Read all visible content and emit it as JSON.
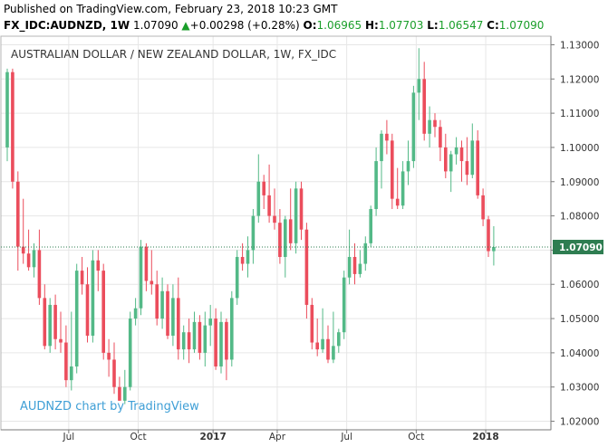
{
  "header": {
    "published": "Published on TradingView.com, February 23, 2018 10:23 GMT",
    "symbol": "FX_IDC:AUDNZD, 1W",
    "price": "1.07090",
    "change_arrow": "▲",
    "change": "+0.00298 (+0.28%)",
    "o_label": "O:",
    "o_value": "1.06965",
    "h_label": "H:",
    "h_value": "1.07703",
    "l_label": "L:",
    "l_value": "1.06547",
    "c_label": "C:",
    "c_value": "1.07090"
  },
  "chart_data": {
    "type": "candlestick",
    "title": "AUSTRALIAN DOLLAR / NEW ZEALAND DOLLAR, 1W, FX_IDC",
    "watermark": "AUDNZD chart by TradingView",
    "ylim": [
      1.0175,
      1.1325
    ],
    "yticks": [
      "1.13000",
      "1.12000",
      "1.11000",
      "1.10000",
      "1.09000",
      "1.08000",
      "1.07000",
      "1.06000",
      "1.05000",
      "1.04000",
      "1.03000",
      "1.02000"
    ],
    "xticks": [
      {
        "label": "Jul",
        "bold": false,
        "index": 11.5
      },
      {
        "label": "Oct",
        "bold": false,
        "index": 24.5
      },
      {
        "label": "2017",
        "bold": true,
        "index": 38.5
      },
      {
        "label": "Apr",
        "bold": false,
        "index": 50.5
      },
      {
        "label": "Jul",
        "bold": false,
        "index": 63.5
      },
      {
        "label": "Oct",
        "bold": false,
        "index": 76.5
      },
      {
        "label": "2018",
        "bold": true,
        "index": 89.5
      }
    ],
    "last_price": "1.07090",
    "last_value": 1.0709,
    "colors": {
      "up": "#53b987",
      "down": "#eb4d5c",
      "grid": "#e6e6e6",
      "last": "#2e7d51"
    },
    "candles": [
      {
        "o": 1.1,
        "h": 1.123,
        "l": 1.096,
        "c": 1.122
      },
      {
        "o": 1.122,
        "h": 1.123,
        "l": 1.088,
        "c": 1.09
      },
      {
        "o": 1.09,
        "h": 1.093,
        "l": 1.064,
        "c": 1.071
      },
      {
        "o": 1.071,
        "h": 1.085,
        "l": 1.066,
        "c": 1.069
      },
      {
        "o": 1.069,
        "h": 1.076,
        "l": 1.064,
        "c": 1.065
      },
      {
        "o": 1.065,
        "h": 1.072,
        "l": 1.062,
        "c": 1.07
      },
      {
        "o": 1.07,
        "h": 1.076,
        "l": 1.054,
        "c": 1.056
      },
      {
        "o": 1.056,
        "h": 1.06,
        "l": 1.041,
        "c": 1.042
      },
      {
        "o": 1.042,
        "h": 1.056,
        "l": 1.04,
        "c": 1.054
      },
      {
        "o": 1.054,
        "h": 1.057,
        "l": 1.041,
        "c": 1.044
      },
      {
        "o": 1.044,
        "h": 1.052,
        "l": 1.04,
        "c": 1.043
      },
      {
        "o": 1.043,
        "h": 1.048,
        "l": 1.03,
        "c": 1.032
      },
      {
        "o": 1.032,
        "h": 1.052,
        "l": 1.029,
        "c": 1.036
      },
      {
        "o": 1.036,
        "h": 1.066,
        "l": 1.034,
        "c": 1.064
      },
      {
        "o": 1.064,
        "h": 1.068,
        "l": 1.057,
        "c": 1.06
      },
      {
        "o": 1.06,
        "h": 1.065,
        "l": 1.043,
        "c": 1.045
      },
      {
        "o": 1.045,
        "h": 1.07,
        "l": 1.043,
        "c": 1.067
      },
      {
        "o": 1.067,
        "h": 1.07,
        "l": 1.058,
        "c": 1.064
      },
      {
        "o": 1.064,
        "h": 1.066,
        "l": 1.038,
        "c": 1.04
      },
      {
        "o": 1.04,
        "h": 1.044,
        "l": 1.033,
        "c": 1.038
      },
      {
        "o": 1.038,
        "h": 1.043,
        "l": 1.028,
        "c": 1.03
      },
      {
        "o": 1.03,
        "h": 1.033,
        "l": 1.026,
        "c": 1.026
      },
      {
        "o": 1.026,
        "h": 1.035,
        "l": 1.025,
        "c": 1.03
      },
      {
        "o": 1.03,
        "h": 1.052,
        "l": 1.029,
        "c": 1.05
      },
      {
        "o": 1.05,
        "h": 1.056,
        "l": 1.048,
        "c": 1.053
      },
      {
        "o": 1.053,
        "h": 1.073,
        "l": 1.051,
        "c": 1.071
      },
      {
        "o": 1.071,
        "h": 1.072,
        "l": 1.058,
        "c": 1.061
      },
      {
        "o": 1.061,
        "h": 1.07,
        "l": 1.057,
        "c": 1.06
      },
      {
        "o": 1.06,
        "h": 1.064,
        "l": 1.048,
        "c": 1.05
      },
      {
        "o": 1.05,
        "h": 1.062,
        "l": 1.047,
        "c": 1.058
      },
      {
        "o": 1.058,
        "h": 1.06,
        "l": 1.044,
        "c": 1.045
      },
      {
        "o": 1.045,
        "h": 1.06,
        "l": 1.042,
        "c": 1.056
      },
      {
        "o": 1.056,
        "h": 1.062,
        "l": 1.038,
        "c": 1.041
      },
      {
        "o": 1.041,
        "h": 1.048,
        "l": 1.038,
        "c": 1.046
      },
      {
        "o": 1.046,
        "h": 1.05,
        "l": 1.037,
        "c": 1.041
      },
      {
        "o": 1.041,
        "h": 1.052,
        "l": 1.04,
        "c": 1.049
      },
      {
        "o": 1.049,
        "h": 1.051,
        "l": 1.038,
        "c": 1.04
      },
      {
        "o": 1.04,
        "h": 1.052,
        "l": 1.036,
        "c": 1.048
      },
      {
        "o": 1.048,
        "h": 1.054,
        "l": 1.042,
        "c": 1.05
      },
      {
        "o": 1.05,
        "h": 1.053,
        "l": 1.035,
        "c": 1.036
      },
      {
        "o": 1.036,
        "h": 1.052,
        "l": 1.034,
        "c": 1.049
      },
      {
        "o": 1.049,
        "h": 1.05,
        "l": 1.032,
        "c": 1.038
      },
      {
        "o": 1.038,
        "h": 1.058,
        "l": 1.036,
        "c": 1.056
      },
      {
        "o": 1.056,
        "h": 1.07,
        "l": 1.054,
        "c": 1.068
      },
      {
        "o": 1.068,
        "h": 1.072,
        "l": 1.064,
        "c": 1.066
      },
      {
        "o": 1.066,
        "h": 1.074,
        "l": 1.062,
        "c": 1.07
      },
      {
        "o": 1.07,
        "h": 1.082,
        "l": 1.066,
        "c": 1.08
      },
      {
        "o": 1.08,
        "h": 1.098,
        "l": 1.078,
        "c": 1.09
      },
      {
        "o": 1.09,
        "h": 1.092,
        "l": 1.082,
        "c": 1.086
      },
      {
        "o": 1.086,
        "h": 1.095,
        "l": 1.078,
        "c": 1.08
      },
      {
        "o": 1.08,
        "h": 1.088,
        "l": 1.076,
        "c": 1.078
      },
      {
        "o": 1.078,
        "h": 1.082,
        "l": 1.066,
        "c": 1.068
      },
      {
        "o": 1.068,
        "h": 1.08,
        "l": 1.062,
        "c": 1.079
      },
      {
        "o": 1.079,
        "h": 1.088,
        "l": 1.07,
        "c": 1.072
      },
      {
        "o": 1.072,
        "h": 1.09,
        "l": 1.069,
        "c": 1.088
      },
      {
        "o": 1.088,
        "h": 1.09,
        "l": 1.073,
        "c": 1.076
      },
      {
        "o": 1.076,
        "h": 1.078,
        "l": 1.05,
        "c": 1.054
      },
      {
        "o": 1.054,
        "h": 1.056,
        "l": 1.041,
        "c": 1.043
      },
      {
        "o": 1.043,
        "h": 1.05,
        "l": 1.039,
        "c": 1.041
      },
      {
        "o": 1.041,
        "h": 1.053,
        "l": 1.04,
        "c": 1.044
      },
      {
        "o": 1.044,
        "h": 1.048,
        "l": 1.037,
        "c": 1.038
      },
      {
        "o": 1.038,
        "h": 1.052,
        "l": 1.037,
        "c": 1.042
      },
      {
        "o": 1.042,
        "h": 1.047,
        "l": 1.04,
        "c": 1.046
      },
      {
        "o": 1.046,
        "h": 1.064,
        "l": 1.044,
        "c": 1.062
      },
      {
        "o": 1.062,
        "h": 1.076,
        "l": 1.06,
        "c": 1.068
      },
      {
        "o": 1.068,
        "h": 1.072,
        "l": 1.06,
        "c": 1.063
      },
      {
        "o": 1.063,
        "h": 1.07,
        "l": 1.062,
        "c": 1.066
      },
      {
        "o": 1.066,
        "h": 1.074,
        "l": 1.064,
        "c": 1.072
      },
      {
        "o": 1.072,
        "h": 1.083,
        "l": 1.071,
        "c": 1.082
      },
      {
        "o": 1.082,
        "h": 1.1,
        "l": 1.08,
        "c": 1.096
      },
      {
        "o": 1.096,
        "h": 1.105,
        "l": 1.088,
        "c": 1.104
      },
      {
        "o": 1.104,
        "h": 1.108,
        "l": 1.098,
        "c": 1.102
      },
      {
        "o": 1.102,
        "h": 1.104,
        "l": 1.082,
        "c": 1.085
      },
      {
        "o": 1.085,
        "h": 1.094,
        "l": 1.082,
        "c": 1.083
      },
      {
        "o": 1.083,
        "h": 1.096,
        "l": 1.082,
        "c": 1.093
      },
      {
        "o": 1.093,
        "h": 1.102,
        "l": 1.089,
        "c": 1.096
      },
      {
        "o": 1.096,
        "h": 1.118,
        "l": 1.094,
        "c": 1.116
      },
      {
        "o": 1.116,
        "h": 1.129,
        "l": 1.108,
        "c": 1.12
      },
      {
        "o": 1.12,
        "h": 1.125,
        "l": 1.102,
        "c": 1.104
      },
      {
        "o": 1.104,
        "h": 1.112,
        "l": 1.1,
        "c": 1.108
      },
      {
        "o": 1.108,
        "h": 1.11,
        "l": 1.103,
        "c": 1.106
      },
      {
        "o": 1.106,
        "h": 1.108,
        "l": 1.096,
        "c": 1.1
      },
      {
        "o": 1.1,
        "h": 1.104,
        "l": 1.091,
        "c": 1.093
      },
      {
        "o": 1.093,
        "h": 1.099,
        "l": 1.087,
        "c": 1.098
      },
      {
        "o": 1.098,
        "h": 1.103,
        "l": 1.095,
        "c": 1.1
      },
      {
        "o": 1.1,
        "h": 1.102,
        "l": 1.09,
        "c": 1.096
      },
      {
        "o": 1.096,
        "h": 1.103,
        "l": 1.089,
        "c": 1.092
      },
      {
        "o": 1.092,
        "h": 1.107,
        "l": 1.091,
        "c": 1.102
      },
      {
        "o": 1.102,
        "h": 1.105,
        "l": 1.085,
        "c": 1.086
      },
      {
        "o": 1.086,
        "h": 1.088,
        "l": 1.077,
        "c": 1.079
      },
      {
        "o": 1.079,
        "h": 1.08,
        "l": 1.068,
        "c": 1.0697
      },
      {
        "o": 1.0697,
        "h": 1.077,
        "l": 1.0655,
        "c": 1.0709
      }
    ]
  }
}
